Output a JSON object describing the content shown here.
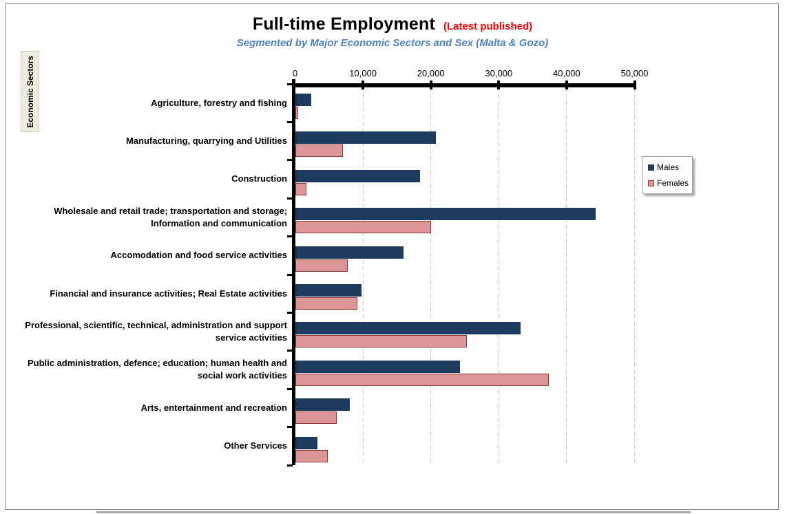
{
  "title": "Full-time Employment",
  "title_suffix": "(Latest published)",
  "subtitle": "Segmented by Major Economic Sectors and Sex (Malta & Gozo)",
  "y_axis_title": "Economic Sectors",
  "legend": {
    "items": [
      "Males",
      "Females"
    ],
    "position": "right"
  },
  "colors": {
    "males": "#1F3A5F",
    "females_fill": "#DC9695",
    "females_border": "#953735",
    "subtitle": "#4E81BD",
    "title_suffix": "#FF0000",
    "gridline": "#c9c9c9",
    "axis": "#000000",
    "axis_label_box": "#EEECE1"
  },
  "chart_data": {
    "type": "bar",
    "orientation": "horizontal",
    "title": "Full-time Employment (Latest published)",
    "subtitle": "Segmented by Major Economic Sectors and Sex (Malta & Gozo)",
    "xlabel": "",
    "ylabel": "Economic Sectors",
    "xlim": [
      0,
      50000
    ],
    "x_ticks": [
      0,
      10000,
      20000,
      30000,
      40000,
      50000
    ],
    "x_tick_labels": [
      "0",
      "10,000",
      "20,000",
      "30,000",
      "40,000",
      "50,000"
    ],
    "grid": "vertical-dashed",
    "legend_position": "right",
    "categories": [
      "Agriculture, forestry and fishing",
      "Manufacturing, quarrying and Utilities",
      "Construction",
      "Wholesale and retail trade; transportation and storage; Information and communication",
      "Accomodation and food service activities",
      "Financial and insurance activities; Real Estate activities",
      "Professional, scientific, technical, administration and support service activities",
      "Public administration, defence; education; human health and social work activities",
      "Arts, entertainment and recreation",
      "Other Services"
    ],
    "series": [
      {
        "name": "Males",
        "values": [
          2400,
          20700,
          18400,
          44300,
          16000,
          9800,
          33200,
          24300,
          8100,
          3300
        ]
      },
      {
        "name": "Females",
        "values": [
          500,
          7000,
          1700,
          20000,
          7800,
          9200,
          25300,
          37400,
          6100,
          4800
        ]
      }
    ]
  }
}
